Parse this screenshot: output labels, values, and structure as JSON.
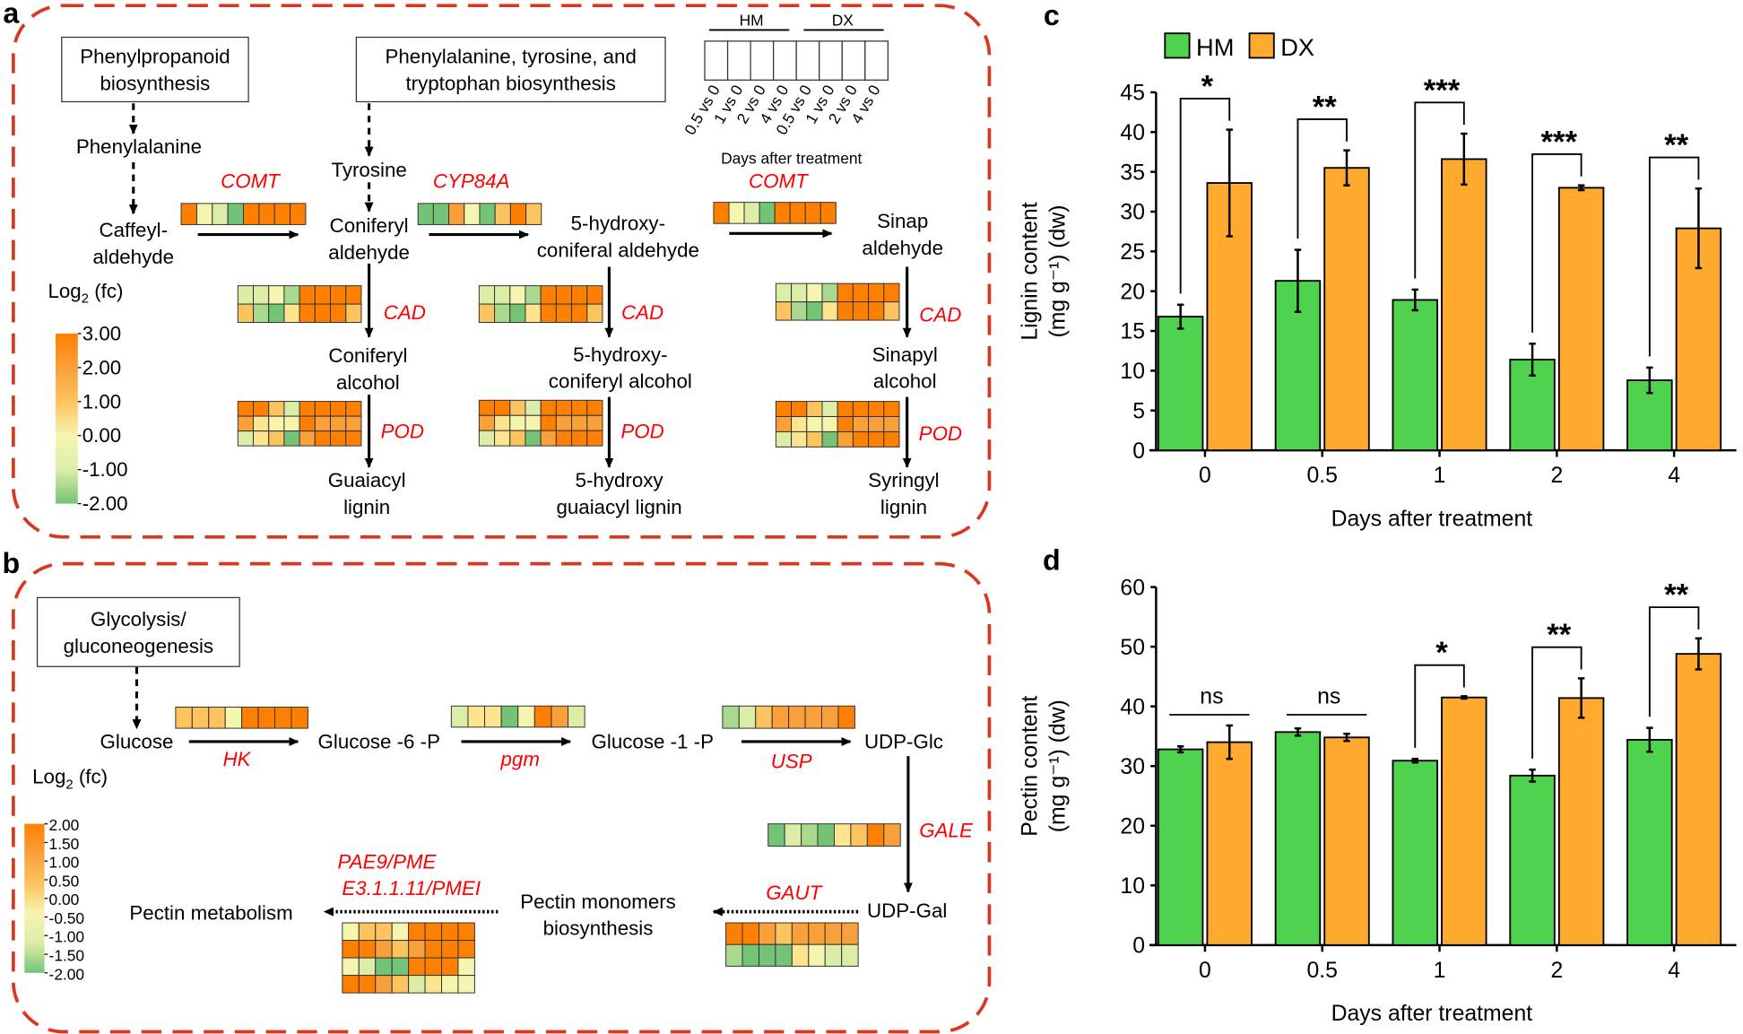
{
  "palette": {
    "O": "#FF8000",
    "o": "#F9A03A",
    "y": "#FCC35E",
    "Y": "#FDE58F",
    "L": "#F5F5B0",
    "l": "#DCEDA8",
    "g": "#A8D98E",
    "G": "#74C476"
  },
  "colors": {
    "border_dashed": "#D9381E",
    "enzyme": "#FF0000",
    "hm": "#4FD34F",
    "dx": "#FFAA2E"
  },
  "panel_a": {
    "label": "a",
    "boxes": {
      "phenylpropanoid": "Phenylpropanoid\nbiosynthesis",
      "aromatic": "Phenylalanine, tyrosine, and\ntryptophan biosynthesis"
    },
    "compounds": {
      "phenylalanine": "Phenylalanine",
      "caffeyl": "Caffeyl-\naldehyde",
      "tyrosine": "Tyrosine",
      "coniferyl_aldehyde": "Coniferyl\naldehyde",
      "hydroxy_coniferal": "5-hydroxy-\nconiferal aldehyde",
      "sinap_aldehyde": "Sinap\naldehyde",
      "coniferyl_alcohol": "Coniferyl\nalcohol",
      "hydroxy_coniferyl_alcohol": "5-hydroxy-\nconiferyl alcohol",
      "sinapyl_alcohol": "Sinapyl\nalcohol",
      "guaiacyl": "Guaiacyl\nlignin",
      "hydroxy_guaiacyl": "5-hydroxy\nguaiacyl lignin",
      "syringyl": "Syringyl\nlignin"
    },
    "enzymes": {
      "comt1": "COMT",
      "cyp84a": "CYP84A",
      "comt2": "COMT",
      "cad1": "CAD",
      "cad2": "CAD",
      "cad3": "CAD",
      "pod1": "POD",
      "pod2": "POD",
      "pod3": "POD"
    },
    "heatmaps": {
      "comt": [
        [
          "O",
          "L",
          "l",
          "G",
          "O",
          "O",
          "O",
          "O"
        ]
      ],
      "cyp84a": [
        [
          "G",
          "G",
          "o",
          "L",
          "G",
          "y",
          "O",
          "y"
        ]
      ],
      "cad": [
        [
          "l",
          "l",
          "L",
          "g",
          "O",
          "O",
          "O",
          "O"
        ],
        [
          "y",
          "g",
          "G",
          "Y",
          "O",
          "O",
          "O",
          "y"
        ]
      ],
      "pod": [
        [
          "O",
          "O",
          "y",
          "l",
          "O",
          "O",
          "O",
          "O"
        ],
        [
          "o",
          "Y",
          "L",
          "L",
          "O",
          "o",
          "o",
          "o"
        ],
        [
          "l",
          "Y",
          "y",
          "G",
          "o",
          "O",
          "O",
          "O"
        ]
      ]
    },
    "key": {
      "group1": "HM",
      "group2": "DX",
      "columns": [
        "0.5 vs 0",
        "1 vs 0",
        "2 vs 0",
        "4 vs 0",
        "0.5 vs 0",
        "1 vs 0",
        "2 vs 0",
        "4 vs 0"
      ],
      "axis_title": "Days after treatment"
    },
    "scale": {
      "title": "Log2 (fc)",
      "ticks": [
        "3.00",
        "2.00",
        "1.00",
        "0.00",
        "-1.00",
        "-2.00"
      ]
    }
  },
  "panel_b": {
    "label": "b",
    "box": "Glycolysis/\ngluconeogenesis",
    "compounds": {
      "glucose": "Glucose",
      "g6p": "Glucose -6 -P",
      "g1p": "Glucose -1 -P",
      "udp_glc": "UDP-Glc",
      "udp_gal": "UDP-Gal",
      "pectin_monomers": "Pectin monomers\nbiosynthesis",
      "pectin_metabolism": "Pectin metabolism"
    },
    "enzymes": {
      "hk": "HK",
      "pgm": "pgm",
      "usp": "USP",
      "gale": "GALE",
      "gaut": "GAUT",
      "pae1": "PAE9/PME",
      "pae2": "E3.1.1.11/PMEI"
    },
    "heatmaps": {
      "hk": [
        [
          "y",
          "y",
          "y",
          "L",
          "O",
          "O",
          "O",
          "O"
        ]
      ],
      "pgm": [
        [
          "l",
          "Y",
          "Y",
          "G",
          "L",
          "O",
          "o",
          "l"
        ]
      ],
      "usp": [
        [
          "g",
          "l",
          "y",
          "o",
          "o",
          "o",
          "o",
          "O"
        ]
      ],
      "gale": [
        [
          "G",
          "l",
          "g",
          "G",
          "Y",
          "y",
          "O",
          "o"
        ]
      ],
      "gaut": [
        [
          "O",
          "O",
          "o",
          "y",
          "o",
          "o",
          "o",
          "o"
        ],
        [
          "g",
          "G",
          "G",
          "G",
          "Y",
          "L",
          "l",
          "l"
        ]
      ],
      "pae": [
        [
          "L",
          "y",
          "y",
          "L",
          "O",
          "O",
          "O",
          "O"
        ],
        [
          "O",
          "O",
          "o",
          "y",
          "o",
          "O",
          "O",
          "O"
        ],
        [
          "L",
          "l",
          "G",
          "G",
          "O",
          "O",
          "O",
          "L"
        ],
        [
          "O",
          "O",
          "o",
          "y",
          "l",
          "Y",
          "L",
          "L"
        ]
      ]
    },
    "scale": {
      "title": "Log2 (fc)",
      "ticks": [
        "2.00",
        "1.50",
        "1.00",
        "0.50",
        "0.00",
        "-0.50",
        "-1.00",
        "-1.50",
        "-2.00"
      ]
    }
  },
  "chart_data": [
    {
      "panel": "c",
      "type": "bar",
      "categories": [
        "0",
        "0.5",
        "1",
        "2",
        "4"
      ],
      "xlabel": "Days after treatment",
      "ylabel": "Lignin content\n(mg g⁻¹) (dw)",
      "ylim": [
        0,
        45
      ],
      "yticks": [
        "0",
        "5",
        "10",
        "15",
        "20",
        "25",
        "30",
        "35",
        "40",
        "45"
      ],
      "legend": "top-left",
      "grid": false,
      "series": [
        {
          "name": "HM",
          "values": [
            16.8,
            21.3,
            18.9,
            11.4,
            8.8
          ],
          "errors": [
            1.5,
            3.9,
            1.3,
            2.0,
            1.6
          ]
        },
        {
          "name": "DX",
          "values": [
            33.6,
            35.5,
            36.6,
            33.0,
            27.9
          ],
          "errors": [
            6.7,
            2.2,
            3.2,
            0.3,
            5.0
          ]
        }
      ],
      "significance": [
        "*",
        "**",
        "***",
        "***",
        "**"
      ]
    },
    {
      "panel": "d",
      "type": "bar",
      "categories": [
        "0",
        "0.5",
        "1",
        "2",
        "4"
      ],
      "xlabel": "Days after treatment",
      "ylabel": "Pectin content\n(mg g⁻¹) (dw)",
      "ylim": [
        0,
        60
      ],
      "yticks": [
        "0",
        "10",
        "20",
        "30",
        "40",
        "50",
        "60"
      ],
      "grid": false,
      "series": [
        {
          "name": "HM",
          "values": [
            32.8,
            35.7,
            30.9,
            28.4,
            34.4
          ],
          "errors": [
            0.5,
            0.6,
            0.3,
            1.0,
            2.0
          ]
        },
        {
          "name": "DX",
          "values": [
            34.0,
            34.8,
            41.5,
            41.4,
            48.8
          ],
          "errors": [
            2.8,
            0.6,
            0.2,
            3.3,
            2.6
          ]
        }
      ],
      "significance": [
        "ns",
        "ns",
        "*",
        "**",
        "**"
      ]
    }
  ]
}
